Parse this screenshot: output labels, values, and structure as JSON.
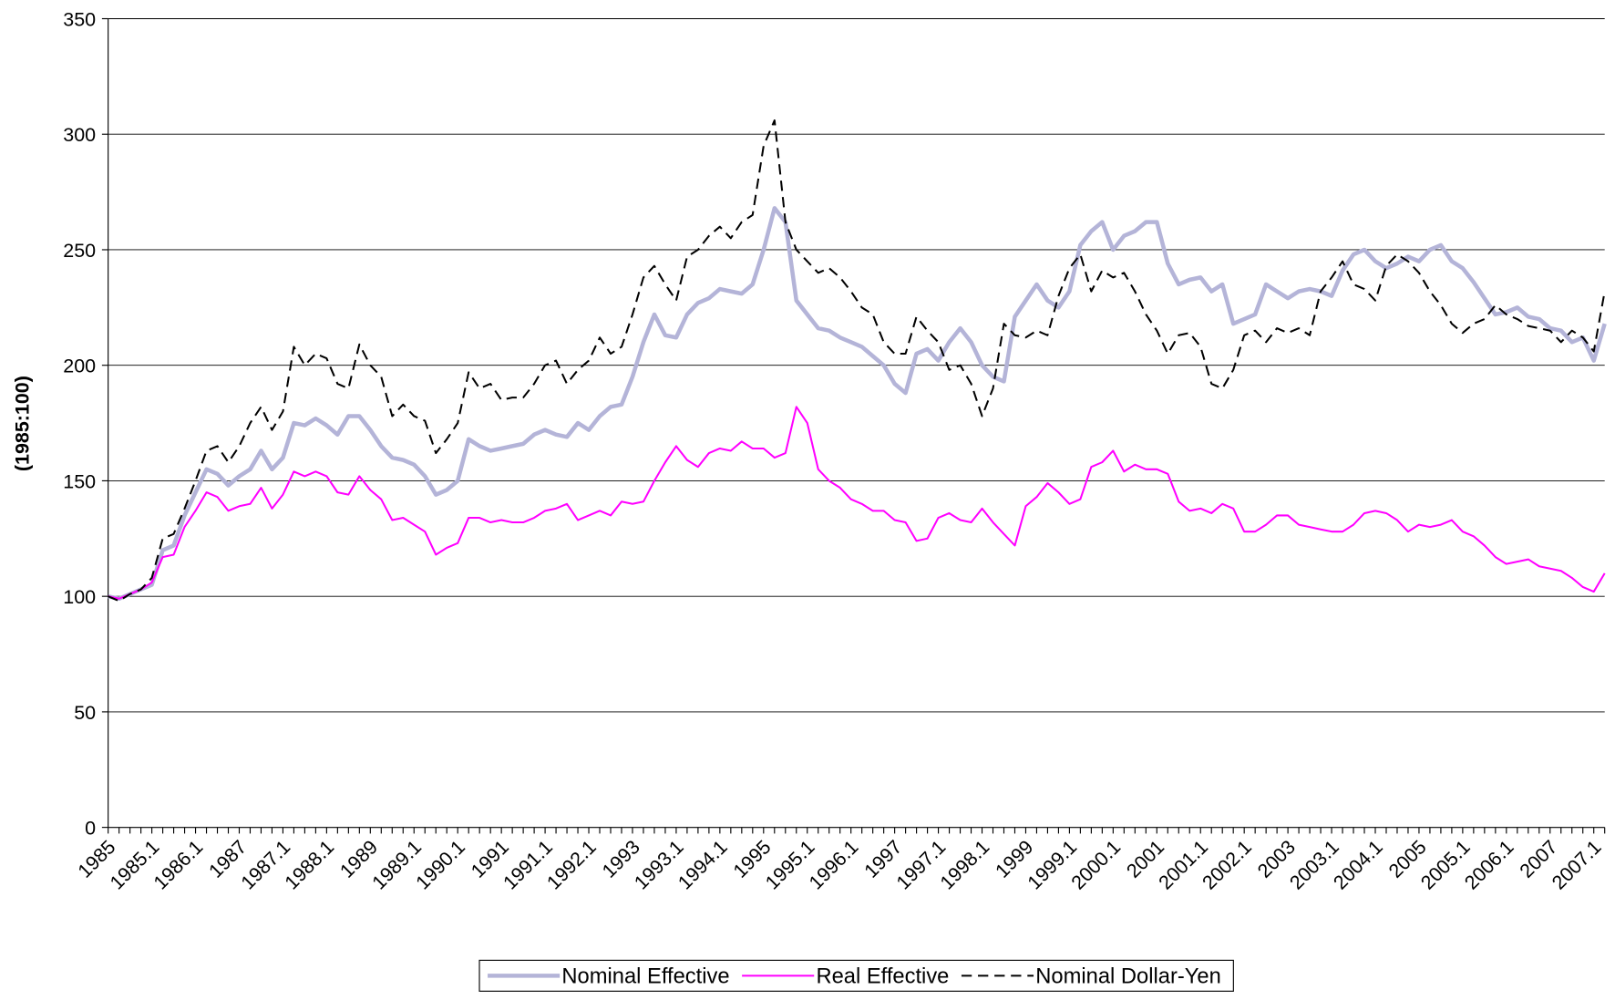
{
  "chart_data": {
    "type": "line",
    "ylabel": "(1985:100)",
    "ylim": [
      0,
      350
    ],
    "yticks": [
      0,
      50,
      100,
      150,
      200,
      250,
      300,
      350
    ],
    "grid": true,
    "legend": "bottom",
    "categories": [
      "1985",
      null,
      null,
      null,
      "1985.1",
      null,
      null,
      null,
      "1986.1",
      null,
      null,
      null,
      "1987",
      null,
      null,
      null,
      "1987.1",
      null,
      null,
      null,
      "1988.1",
      null,
      null,
      null,
      "1989",
      null,
      null,
      null,
      "1989.1",
      null,
      null,
      null,
      "1990.1",
      null,
      null,
      null,
      "1991",
      null,
      null,
      null,
      "1991.1",
      null,
      null,
      null,
      "1992.1",
      null,
      null,
      null,
      "1993",
      null,
      null,
      null,
      "1993.1",
      null,
      null,
      null,
      "1994.1",
      null,
      null,
      null,
      "1995",
      null,
      null,
      null,
      "1995.1",
      null,
      null,
      null,
      "1996.1",
      null,
      null,
      null,
      "1997",
      null,
      null,
      null,
      "1997.1",
      null,
      null,
      null,
      "1998.1",
      null,
      null,
      null,
      "1999",
      null,
      null,
      null,
      "1999.1",
      null,
      null,
      null,
      "2000.1",
      null,
      null,
      null,
      "2001",
      null,
      null,
      null,
      "2001.1",
      null,
      null,
      null,
      "2002.1",
      null,
      null,
      null,
      "2003",
      null,
      null,
      null,
      "2003.1",
      null,
      null,
      null,
      "2004.1",
      null,
      null,
      null,
      "2005",
      null,
      null,
      null,
      "2005.1",
      null,
      null,
      null,
      "2006.1",
      null,
      null,
      null,
      "2007",
      null,
      null,
      null,
      "2007.1",
      null
    ],
    "series": [
      {
        "name": "Nominal Effective",
        "color": "#b4b4d8",
        "style": "thick",
        "values": [
          100,
          99,
          101,
          103,
          105,
          120,
          122,
          135,
          145,
          155,
          153,
          148,
          152,
          155,
          163,
          155,
          160,
          175,
          174,
          177,
          174,
          170,
          178,
          178,
          172,
          165,
          160,
          159,
          157,
          152,
          144,
          146,
          150,
          168,
          165,
          163,
          164,
          165,
          166,
          170,
          172,
          170,
          169,
          175,
          172,
          178,
          182,
          183,
          195,
          210,
          222,
          213,
          212,
          222,
          227,
          229,
          233,
          232,
          231,
          235,
          250,
          268,
          262,
          228,
          222,
          216,
          215,
          212,
          210,
          208,
          204,
          200,
          192,
          188,
          205,
          207,
          202,
          210,
          216,
          210,
          200,
          195,
          193,
          221,
          228,
          235,
          228,
          225,
          232,
          252,
          258,
          262,
          250,
          256,
          258,
          262,
          262,
          244,
          235,
          237,
          238,
          232,
          235,
          218,
          220,
          222,
          235,
          232,
          229,
          232,
          233,
          232,
          230,
          241,
          248,
          250,
          245,
          242,
          244,
          247,
          245,
          250,
          252,
          245,
          242,
          236,
          229,
          222,
          223,
          225,
          221,
          220,
          216,
          215,
          210,
          212,
          202,
          218
        ]
      },
      {
        "name": "Real Effective",
        "color": "#ff00ff",
        "style": "solid",
        "values": [
          100,
          99,
          101,
          103,
          106,
          117,
          118,
          130,
          137,
          145,
          143,
          137,
          139,
          140,
          147,
          138,
          144,
          154,
          152,
          154,
          152,
          145,
          144,
          152,
          146,
          142,
          133,
          134,
          131,
          128,
          118,
          121,
          123,
          134,
          134,
          132,
          133,
          132,
          132,
          134,
          137,
          138,
          140,
          133,
          135,
          137,
          135,
          141,
          140,
          141,
          150,
          158,
          165,
          159,
          156,
          162,
          164,
          163,
          167,
          164,
          164,
          160,
          162,
          182,
          175,
          155,
          150,
          147,
          142,
          140,
          137,
          137,
          133,
          132,
          124,
          125,
          134,
          136,
          133,
          132,
          138,
          132,
          127,
          122,
          139,
          143,
          149,
          145,
          140,
          142,
          156,
          158,
          163,
          154,
          157,
          155,
          155,
          153,
          141,
          137,
          138,
          136,
          140,
          138,
          128,
          128,
          131,
          135,
          135,
          131,
          130,
          129,
          128,
          128,
          131,
          136,
          137,
          136,
          133,
          128,
          131,
          130,
          131,
          133,
          128,
          126,
          122,
          117,
          114,
          115,
          116,
          113,
          112,
          111,
          108,
          104,
          102,
          110
        ]
      },
      {
        "name": "Nominal Dollar-Yen",
        "color": "#000000",
        "style": "dashed",
        "values": [
          100,
          98,
          101,
          103,
          108,
          125,
          127,
          138,
          150,
          163,
          165,
          158,
          165,
          175,
          182,
          172,
          180,
          208,
          200,
          205,
          203,
          192,
          190,
          209,
          200,
          195,
          178,
          183,
          178,
          176,
          162,
          168,
          175,
          197,
          190,
          192,
          185,
          186,
          186,
          192,
          200,
          202,
          192,
          198,
          202,
          212,
          205,
          208,
          222,
          238,
          243,
          235,
          228,
          247,
          250,
          256,
          260,
          255,
          262,
          265,
          295,
          306,
          262,
          250,
          245,
          240,
          242,
          238,
          232,
          225,
          222,
          210,
          205,
          205,
          221,
          215,
          210,
          198,
          200,
          192,
          178,
          190,
          218,
          213,
          212,
          215,
          213,
          230,
          242,
          248,
          232,
          241,
          238,
          240,
          232,
          222,
          215,
          205,
          213,
          214,
          208,
          192,
          190,
          198,
          213,
          215,
          210,
          216,
          214,
          216,
          213,
          232,
          238,
          245,
          235,
          233,
          228,
          243,
          248,
          245,
          240,
          232,
          226,
          218,
          214,
          218,
          220,
          226,
          222,
          220,
          217,
          216,
          215,
          210,
          215,
          212,
          206,
          232
        ]
      }
    ]
  }
}
